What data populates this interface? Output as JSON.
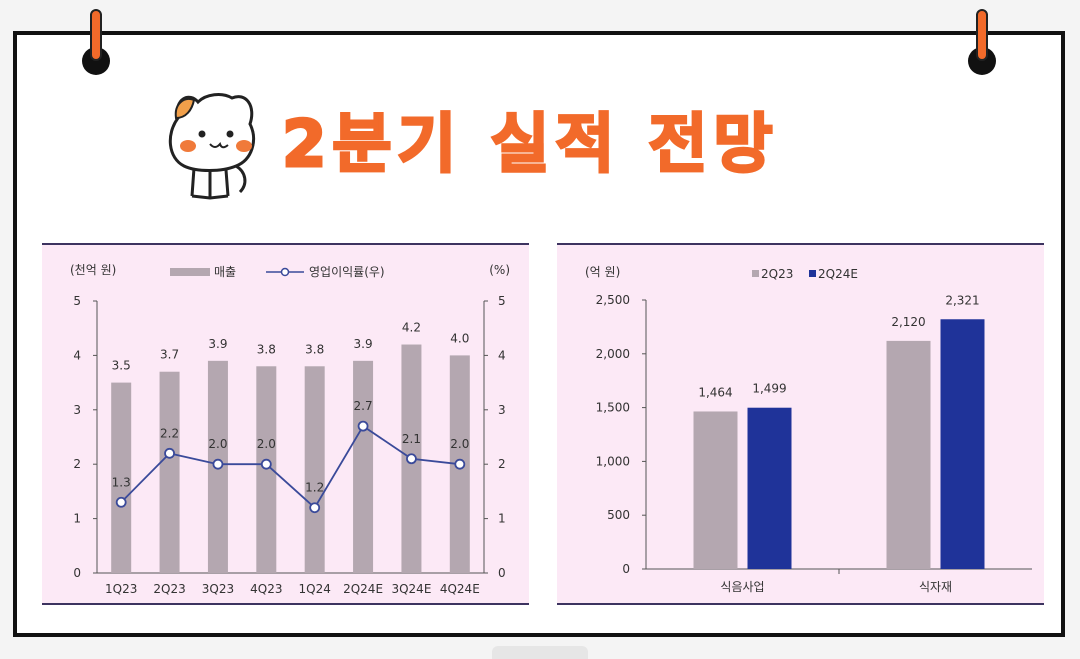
{
  "title": "2분기 실적 전망",
  "colors": {
    "title": "#f26a2a",
    "panel_bg": "#fce9f6",
    "bar_gray": "#b4a7b0",
    "bar_blue": "#1f3399",
    "line": "#3a4a9a"
  },
  "icons": [
    "cat-mascot-icon",
    "pushpin-icon"
  ],
  "chart_data": [
    {
      "type": "bar",
      "categories": [
        "1Q23",
        "2Q23",
        "3Q23",
        "4Q23",
        "1Q24",
        "2Q24E",
        "3Q24E",
        "4Q24E"
      ],
      "y_unit_label": "(천억 원)",
      "y2_unit_label": "(%)",
      "ylim": [
        0,
        5
      ],
      "y2lim": [
        0,
        5
      ],
      "yticks": [
        "0",
        "1",
        "2",
        "3",
        "4",
        "5"
      ],
      "y2ticks": [
        "0",
        "1",
        "2",
        "3",
        "4",
        "5"
      ],
      "series": [
        {
          "name": "매출",
          "type": "bar",
          "axis": "left",
          "values": [
            3.5,
            3.7,
            3.9,
            3.8,
            3.8,
            3.9,
            4.2,
            4.0
          ],
          "labels": [
            "3.5",
            "3.7",
            "3.9",
            "3.8",
            "3.8",
            "3.9",
            "4.2",
            "4.0"
          ]
        },
        {
          "name": "영업이익률(우)",
          "type": "line",
          "axis": "right",
          "values": [
            1.3,
            2.2,
            2.0,
            2.0,
            1.2,
            2.7,
            2.1,
            2.0
          ],
          "labels": [
            "1.3",
            "2.2",
            "2.0",
            "2.0",
            "1.2",
            "2.7",
            "2.1",
            "2.0"
          ]
        }
      ],
      "legend_position": "top"
    },
    {
      "type": "bar",
      "categories": [
        "식음사업",
        "식자재"
      ],
      "y_unit_label": "(억 원)",
      "ylim": [
        0,
        2500
      ],
      "yticks": [
        "0",
        "500",
        "1,000",
        "1,500",
        "2,000",
        "2,500"
      ],
      "series": [
        {
          "name": "2Q23",
          "values": [
            1464,
            2120
          ],
          "labels": [
            "1,464",
            "2,120"
          ]
        },
        {
          "name": "2Q24E",
          "values": [
            1499,
            2321
          ],
          "labels": [
            "1,499",
            "2,321"
          ]
        }
      ],
      "legend_position": "top"
    }
  ]
}
